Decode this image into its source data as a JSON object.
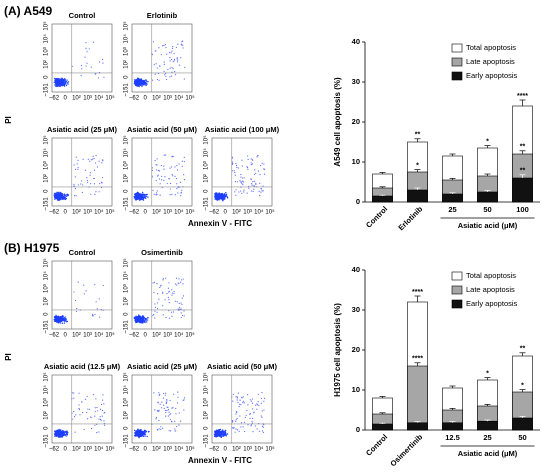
{
  "panels": [
    {
      "label": "(A) A549",
      "y_label": "PI",
      "x_label": "Annexin V - FITC",
      "plots": [
        "Control",
        "Erlotinib",
        "Asiatic acid (25 μM)",
        "Asiatic acid (50 μM)",
        "Asiatic acid (100 μM)"
      ],
      "x_ticks": [
        "−62",
        "0",
        "10²",
        "10³",
        "10⁴",
        "10⁵"
      ],
      "y_ticks": [
        "−151",
        "0",
        "10²",
        "10³",
        "10⁴",
        "10⁵"
      ]
    },
    {
      "label": "(B) H1975",
      "y_label": "PI",
      "x_label": "Annexin V - FITC",
      "plots": [
        "Control",
        "Osimertinib",
        "Asiatic acid (12.5 μM)",
        "Asiatic acid (25 μM)",
        "Asiatic acid (50 μM)"
      ],
      "x_ticks": [
        "−62",
        "0",
        "10²",
        "10³",
        "10⁴",
        "10⁵"
      ],
      "y_ticks": [
        "−151",
        "0",
        "10²",
        "10³",
        "10⁴",
        "10⁵"
      ]
    }
  ],
  "chart_data": [
    {
      "type": "bar",
      "y_label": "A549 cell apoptosis (%)",
      "group_label": "Asiatic acid (μM)",
      "categories": [
        "Control",
        "Erlotinib",
        "25",
        "50",
        "100"
      ],
      "series": [
        {
          "name": "Total apoptosis",
          "color": "#ffffff",
          "values": [
            7,
            15,
            11.5,
            13.5,
            24
          ],
          "errors": [
            0.4,
            0.8,
            0.5,
            0.6,
            1.5
          ],
          "annotations": [
            null,
            "**",
            null,
            "*",
            "****"
          ]
        },
        {
          "name": "Late apoptosis",
          "color": "#a6a6a6",
          "values": [
            3.5,
            7.5,
            5.5,
            6.5,
            12
          ],
          "errors": [
            0.3,
            0.6,
            0.4,
            0.5,
            0.8
          ],
          "annotations": [
            null,
            "*",
            null,
            null,
            "**"
          ]
        },
        {
          "name": "Early apoptosis",
          "color": "#111111",
          "values": [
            1.5,
            3,
            2,
            2.5,
            6
          ],
          "errors": [
            0.2,
            0.5,
            0.3,
            0.4,
            0.8
          ],
          "annotations": [
            null,
            null,
            null,
            null,
            "**"
          ]
        }
      ],
      "ylim": [
        0,
        40
      ],
      "yticks": [
        0,
        10,
        20,
        30,
        40
      ],
      "legend": "upper right"
    },
    {
      "type": "bar",
      "y_label": "H1975 cell apoptosis (%)",
      "group_label": "Asiatic acid (μM)",
      "categories": [
        "Control",
        "Osimertinib",
        "12.5",
        "25",
        "50"
      ],
      "series": [
        {
          "name": "Total apoptosis",
          "color": "#ffffff",
          "values": [
            8,
            32,
            10.5,
            12.5,
            18.5
          ],
          "errors": [
            0.4,
            1.5,
            0.5,
            0.6,
            0.8
          ],
          "annotations": [
            null,
            "****",
            null,
            "*",
            "**"
          ]
        },
        {
          "name": "Late apoptosis",
          "color": "#a6a6a6",
          "values": [
            4,
            16,
            5,
            6,
            9.5
          ],
          "errors": [
            0.3,
            0.8,
            0.4,
            0.4,
            0.6
          ],
          "annotations": [
            null,
            "****",
            null,
            null,
            "*"
          ]
        },
        {
          "name": "Early apoptosis",
          "color": "#111111",
          "values": [
            1.5,
            1.8,
            1.8,
            2.2,
            3
          ],
          "errors": [
            0.2,
            0.3,
            0.3,
            0.3,
            0.4
          ],
          "annotations": [
            null,
            null,
            null,
            null,
            null
          ]
        }
      ],
      "ylim": [
        0,
        40
      ],
      "yticks": [
        0,
        10,
        20,
        30,
        40
      ],
      "legend": "upper right"
    }
  ]
}
